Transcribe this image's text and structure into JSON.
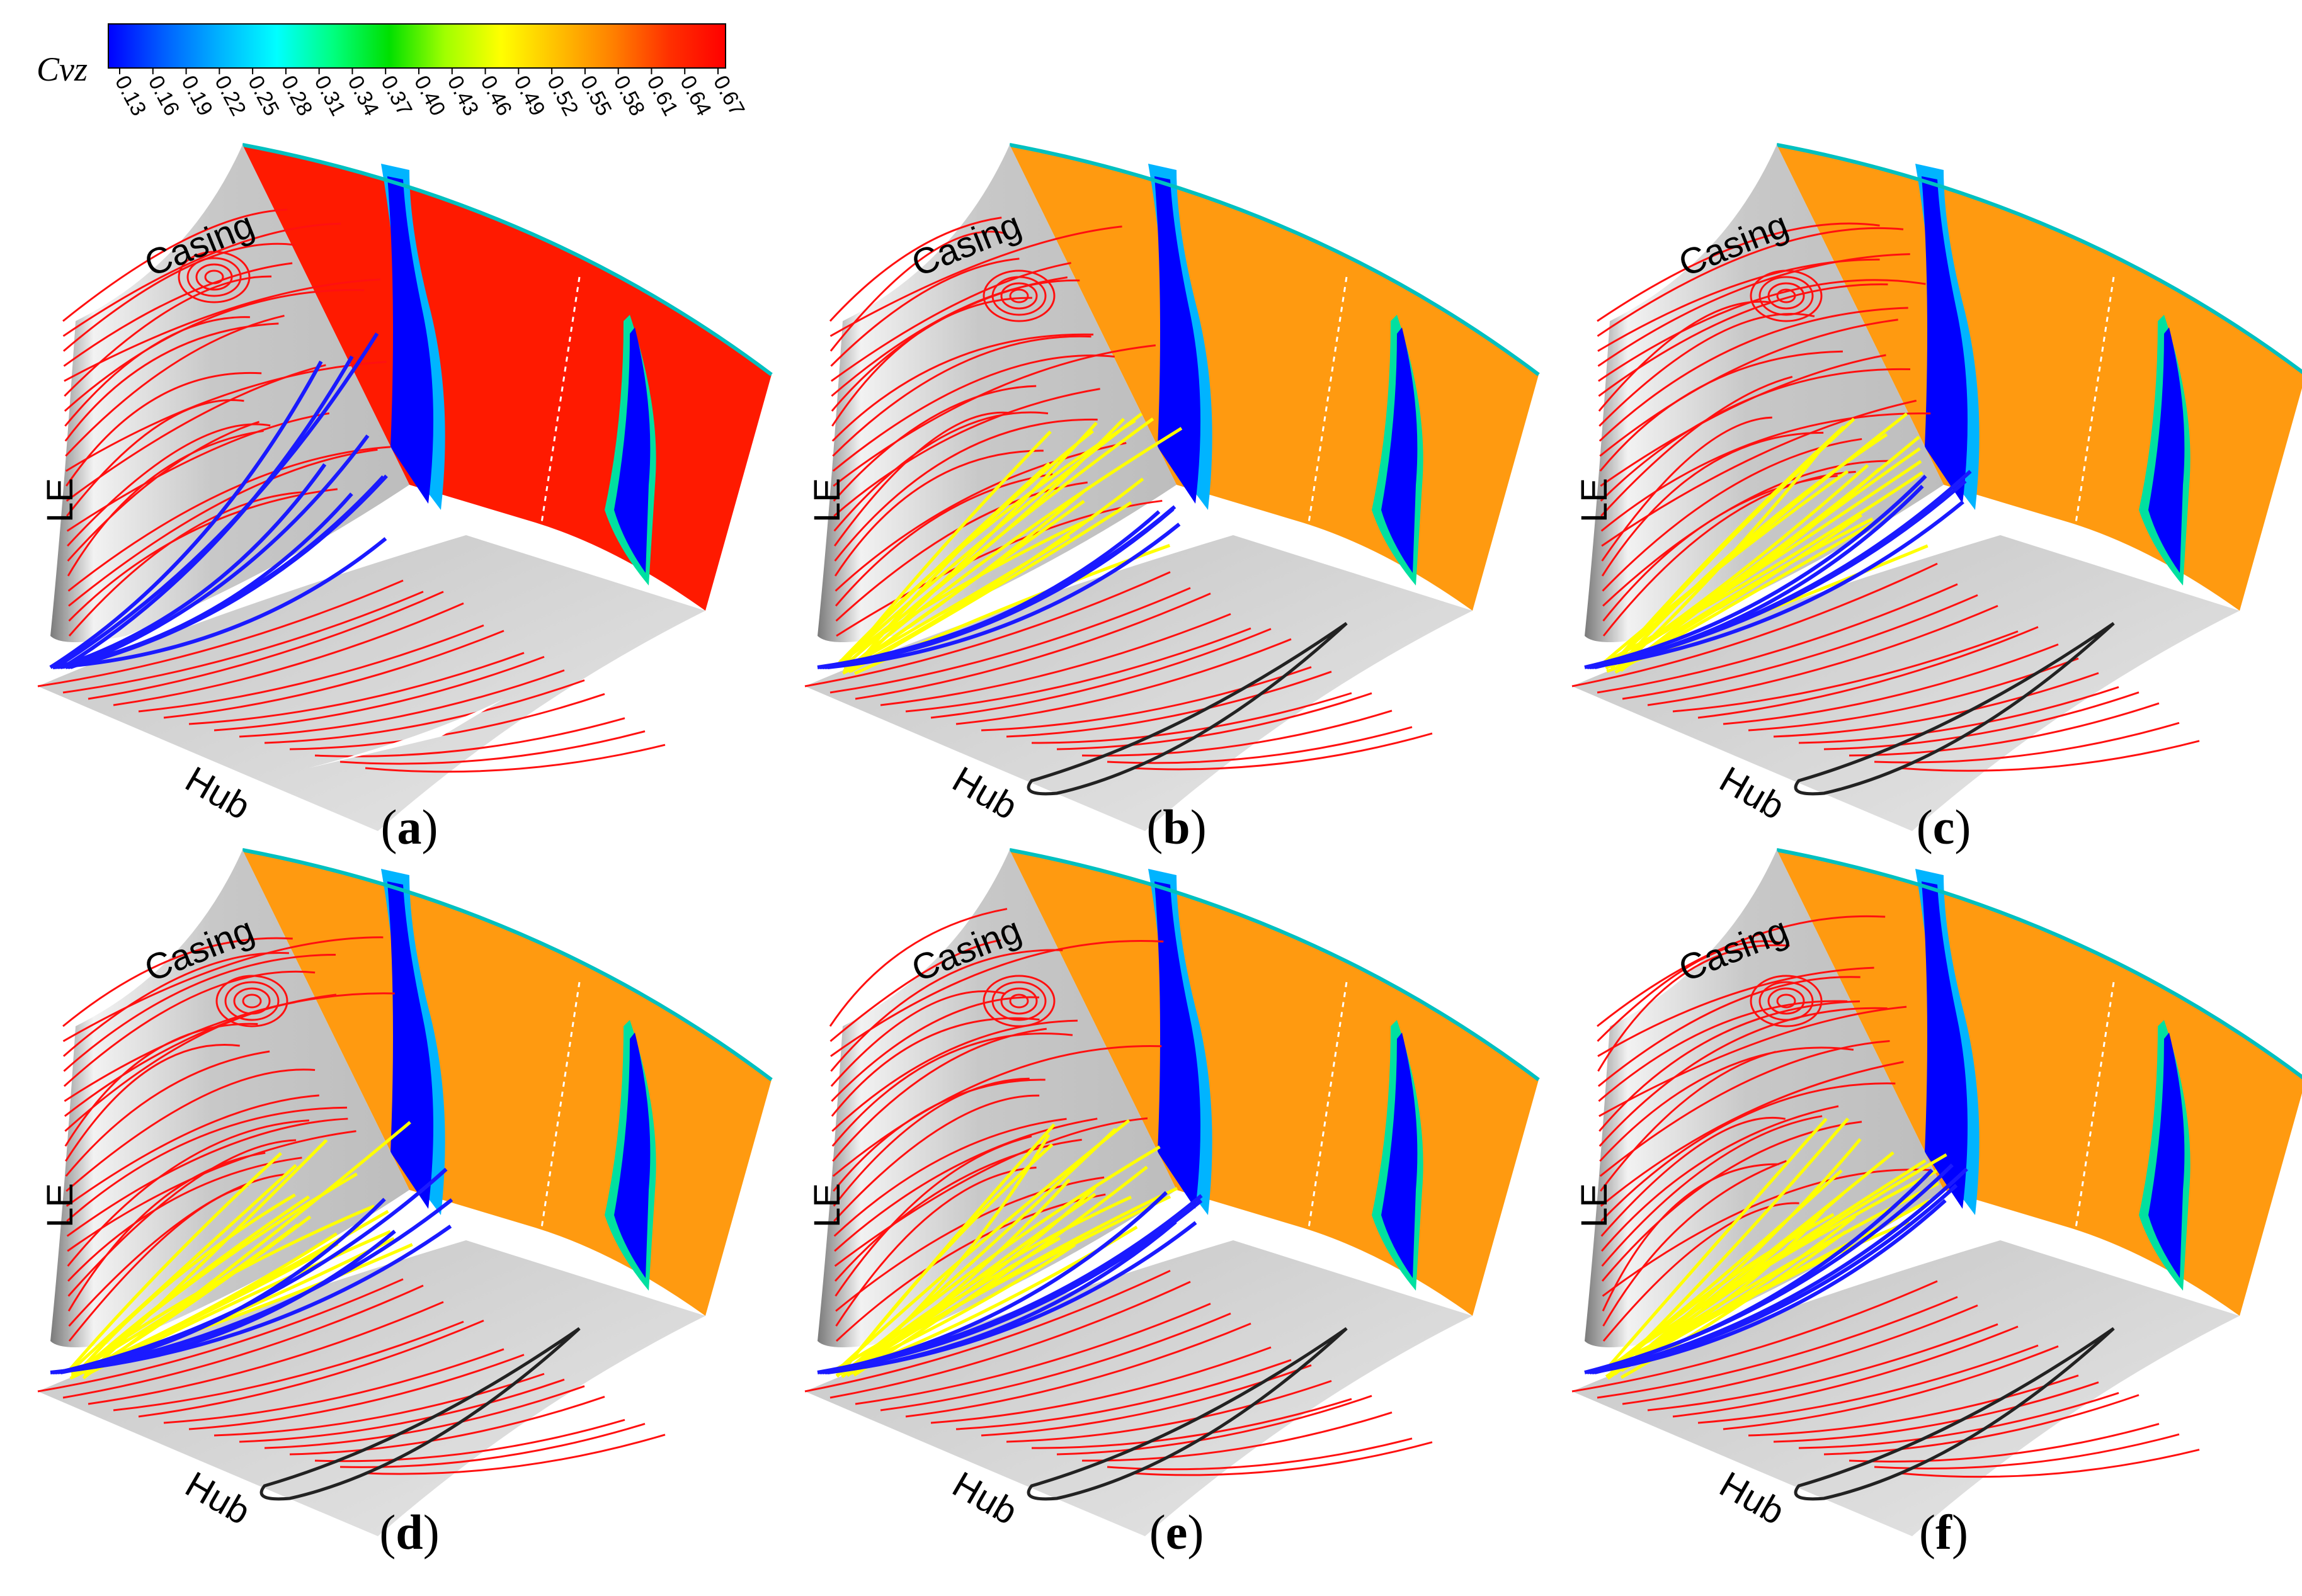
{
  "colorbar": {
    "title": "Cvz",
    "ticks": [
      "0.13",
      "0.16",
      "0.19",
      "0.22",
      "0.25",
      "0.28",
      "0.31",
      "0.34",
      "0.37",
      "0.40",
      "0.43",
      "0.46",
      "0.49",
      "0.52",
      "0.55",
      "0.58",
      "0.61",
      "0.64",
      "0.67"
    ],
    "colors": [
      "#0000ff",
      "#0060ff",
      "#00b4ff",
      "#00ffff",
      "#00ff80",
      "#00e000",
      "#a0ff00",
      "#ffff00",
      "#ffc000",
      "#ff8000",
      "#ff3000",
      "#ff0000"
    ]
  },
  "panels": [
    {
      "caption_open": "(",
      "caption_letter": "a",
      "caption_close": ")",
      "casing": "Casing",
      "le": "LE",
      "hub": "Hub",
      "variant": "a"
    },
    {
      "caption_open": "(",
      "caption_letter": "b",
      "caption_close": ")",
      "casing": "Casing",
      "le": "LE",
      "hub": "Hub",
      "variant": "b"
    },
    {
      "caption_open": "(",
      "caption_letter": "c",
      "caption_close": ")",
      "casing": "Casing",
      "le": "LE",
      "hub": "Hub",
      "variant": "c"
    },
    {
      "caption_open": "(",
      "caption_letter": "d",
      "caption_close": ")",
      "casing": "Casing",
      "le": "LE",
      "hub": "Hub",
      "variant": "d"
    },
    {
      "caption_open": "(",
      "caption_letter": "e",
      "caption_close": ")",
      "casing": "Casing",
      "le": "LE",
      "hub": "Hub",
      "variant": "e"
    },
    {
      "caption_open": "(",
      "caption_letter": "f",
      "caption_close": ")",
      "casing": "Casing",
      "le": "LE",
      "hub": "Hub",
      "variant": "f"
    }
  ],
  "styles": {
    "red_streamline": "#ff1010",
    "blue_vortex": "#1a1aff",
    "yellow_vortex": "#ffff00",
    "blade_outline": "#222222",
    "contour_hot_a": "#ff1a00",
    "contour_hot_other": "#ff9a10"
  }
}
